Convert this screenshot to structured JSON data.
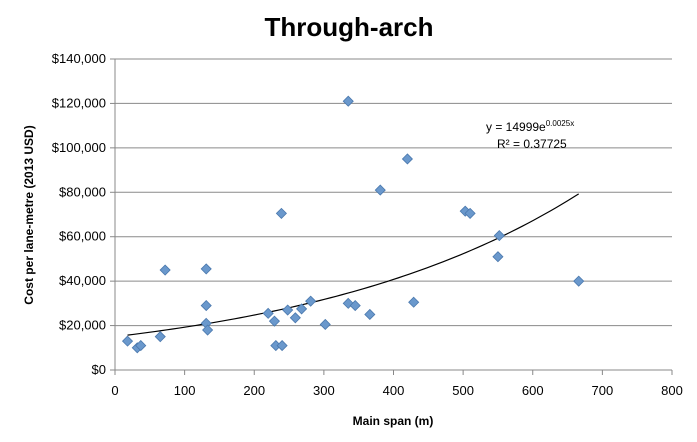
{
  "chart_data": {
    "type": "scatter",
    "title": "Through-arch",
    "xlabel": "Main span (m)",
    "ylabel": "Cost per lane-metre (2013 USD)",
    "xlim": [
      0,
      800
    ],
    "ylim": [
      0,
      140000
    ],
    "x_ticks": [
      0,
      100,
      200,
      300,
      400,
      500,
      600,
      700,
      800
    ],
    "y_ticks": [
      0,
      20000,
      40000,
      60000,
      80000,
      100000,
      120000,
      140000
    ],
    "x_tick_labels": [
      "0",
      "100",
      "200",
      "300",
      "400",
      "500",
      "600",
      "700",
      "800"
    ],
    "y_tick_labels": [
      "$0",
      "$20,000",
      "$40,000",
      "$60,000",
      "$80,000",
      "$100,000",
      "$120,000",
      "$140,000"
    ],
    "grid": "horizontal",
    "marker_color": "#6a98cc",
    "marker_edge_color": "#4a78ad",
    "points": [
      {
        "x": 18,
        "y": 13000
      },
      {
        "x": 32,
        "y": 10000
      },
      {
        "x": 37,
        "y": 11000
      },
      {
        "x": 65,
        "y": 15000
      },
      {
        "x": 72,
        "y": 45000
      },
      {
        "x": 131,
        "y": 45500
      },
      {
        "x": 131,
        "y": 29000
      },
      {
        "x": 131,
        "y": 21000
      },
      {
        "x": 133,
        "y": 18000
      },
      {
        "x": 220,
        "y": 25500
      },
      {
        "x": 229,
        "y": 22000
      },
      {
        "x": 231,
        "y": 11000
      },
      {
        "x": 240,
        "y": 11000
      },
      {
        "x": 239,
        "y": 70500
      },
      {
        "x": 248,
        "y": 27000
      },
      {
        "x": 259,
        "y": 23500
      },
      {
        "x": 268,
        "y": 27500
      },
      {
        "x": 281,
        "y": 31000
      },
      {
        "x": 302,
        "y": 20500
      },
      {
        "x": 335,
        "y": 121000
      },
      {
        "x": 335,
        "y": 30000
      },
      {
        "x": 345,
        "y": 29000
      },
      {
        "x": 366,
        "y": 25000
      },
      {
        "x": 381,
        "y": 81000
      },
      {
        "x": 420,
        "y": 95000
      },
      {
        "x": 429,
        "y": 30500
      },
      {
        "x": 503,
        "y": 71500
      },
      {
        "x": 510,
        "y": 70500
      },
      {
        "x": 550,
        "y": 51000
      },
      {
        "x": 552,
        "y": 60500
      },
      {
        "x": 666,
        "y": 40000
      }
    ],
    "trendline": {
      "type": "exponential",
      "a": 14999,
      "b": 0.0025,
      "x_range": [
        18,
        666
      ],
      "color": "#000000",
      "equation_prefix": "y = 14999e",
      "equation_exponent": "0.0025x",
      "r_squared_text": "R² = 0.37725"
    }
  }
}
